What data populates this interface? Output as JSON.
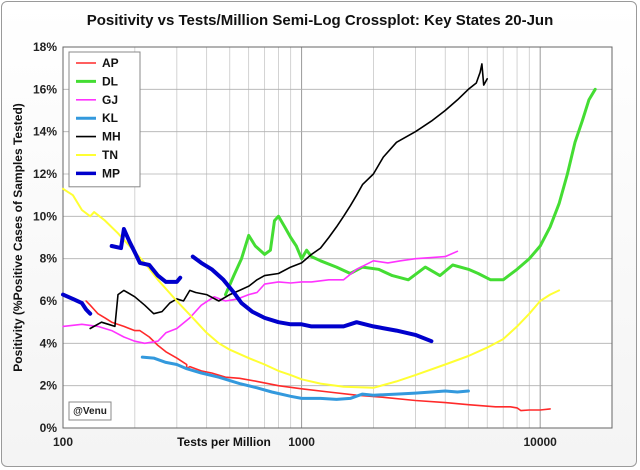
{
  "chart_data": {
    "type": "line",
    "title": "Positivity vs Tests/Million Semi-Log Crossplot: Key States  20-Jun",
    "xlabel": "Tests per Million",
    "ylabel": "Positivity (%Positive Cases of Samples Tested)",
    "x_scale": "log",
    "xlim": [
      100,
      20000
    ],
    "ylim": [
      0,
      18
    ],
    "x_ticks": [
      100,
      1000,
      10000
    ],
    "x_tick_labels": [
      "100",
      "1000",
      "10000"
    ],
    "y_ticks": [
      0,
      2,
      4,
      6,
      8,
      10,
      12,
      14,
      16,
      18
    ],
    "y_tick_labels": [
      "0%",
      "2%",
      "4%",
      "6%",
      "8%",
      "10%",
      "12%",
      "14%",
      "16%",
      "18%"
    ],
    "grid": true,
    "legend_position": "top-left",
    "watermark": "@Venu",
    "series": [
      {
        "name": "AP",
        "color": "#ff2a2a",
        "width": 1.6,
        "points": [
          [
            125,
            6.0
          ],
          [
            130,
            5.8
          ],
          [
            135,
            5.6
          ],
          [
            140,
            5.4
          ],
          [
            150,
            5.2
          ],
          [
            160,
            5.0
          ],
          [
            180,
            4.8
          ],
          [
            200,
            4.6
          ],
          [
            210,
            4.6
          ],
          [
            230,
            4.3
          ],
          [
            250,
            3.9
          ],
          [
            270,
            3.6
          ],
          [
            300,
            3.3
          ],
          [
            320,
            3.1
          ],
          [
            330,
            3.0
          ],
          [
            330,
            2.8
          ],
          [
            340,
            2.9
          ],
          [
            380,
            2.7
          ],
          [
            420,
            2.6
          ],
          [
            480,
            2.4
          ],
          [
            550,
            2.35
          ],
          [
            650,
            2.2
          ],
          [
            800,
            2.0
          ],
          [
            1000,
            1.85
          ],
          [
            1300,
            1.7
          ],
          [
            1700,
            1.55
          ],
          [
            2200,
            1.45
          ],
          [
            3000,
            1.3
          ],
          [
            4000,
            1.2
          ],
          [
            5000,
            1.1
          ],
          [
            6500,
            1.0
          ],
          [
            7500,
            1.0
          ],
          [
            8000,
            0.95
          ],
          [
            8300,
            0.82
          ],
          [
            9000,
            0.85
          ],
          [
            10000,
            0.85
          ],
          [
            11000,
            0.9
          ]
        ]
      },
      {
        "name": "DL",
        "color": "#44dd33",
        "width": 3,
        "points": [
          [
            480,
            6.3
          ],
          [
            520,
            7.2
          ],
          [
            560,
            8.0
          ],
          [
            600,
            9.1
          ],
          [
            640,
            8.6
          ],
          [
            700,
            8.2
          ],
          [
            740,
            8.4
          ],
          [
            770,
            9.8
          ],
          [
            800,
            10.0
          ],
          [
            850,
            9.5
          ],
          [
            900,
            9.0
          ],
          [
            950,
            8.6
          ],
          [
            1000,
            8.0
          ],
          [
            1050,
            8.4
          ],
          [
            1100,
            8.1
          ],
          [
            1200,
            7.9
          ],
          [
            1400,
            7.6
          ],
          [
            1600,
            7.3
          ],
          [
            1800,
            7.6
          ],
          [
            2100,
            7.5
          ],
          [
            2400,
            7.2
          ],
          [
            2800,
            7.0
          ],
          [
            3300,
            7.6
          ],
          [
            3800,
            7.2
          ],
          [
            4300,
            7.7
          ],
          [
            5000,
            7.5
          ],
          [
            5500,
            7.3
          ],
          [
            6200,
            7.0
          ],
          [
            7000,
            7.0
          ],
          [
            8000,
            7.5
          ],
          [
            9000,
            8.0
          ],
          [
            10000,
            8.6
          ],
          [
            11000,
            9.5
          ],
          [
            12000,
            10.6
          ],
          [
            13000,
            12.0
          ],
          [
            14000,
            13.5
          ],
          [
            15000,
            14.5
          ],
          [
            16000,
            15.5
          ],
          [
            17000,
            16.0
          ]
        ]
      },
      {
        "name": "GJ",
        "color": "#ff33ff",
        "width": 1.6,
        "points": [
          [
            100,
            4.8
          ],
          [
            120,
            4.9
          ],
          [
            140,
            4.8
          ],
          [
            160,
            4.6
          ],
          [
            180,
            4.3
          ],
          [
            200,
            4.1
          ],
          [
            220,
            4.0
          ],
          [
            250,
            4.1
          ],
          [
            270,
            4.5
          ],
          [
            300,
            4.7
          ],
          [
            340,
            5.2
          ],
          [
            380,
            5.8
          ],
          [
            430,
            6.2
          ],
          [
            480,
            6.0
          ],
          [
            540,
            6.1
          ],
          [
            600,
            6.3
          ],
          [
            650,
            6.4
          ],
          [
            700,
            6.8
          ],
          [
            800,
            6.9
          ],
          [
            900,
            6.85
          ],
          [
            1000,
            6.9
          ],
          [
            1100,
            6.9
          ],
          [
            1300,
            7.0
          ],
          [
            1500,
            7.0
          ],
          [
            1700,
            7.5
          ],
          [
            2000,
            7.9
          ],
          [
            2300,
            7.8
          ],
          [
            2600,
            7.9
          ],
          [
            3000,
            8.0
          ],
          [
            3500,
            8.05
          ],
          [
            4000,
            8.1
          ],
          [
            4500,
            8.35
          ]
        ]
      },
      {
        "name": "KL",
        "color": "#3399dd",
        "width": 3,
        "points": [
          [
            215,
            3.35
          ],
          [
            240,
            3.3
          ],
          [
            270,
            3.1
          ],
          [
            300,
            3.0
          ],
          [
            330,
            2.8
          ],
          [
            380,
            2.6
          ],
          [
            450,
            2.4
          ],
          [
            550,
            2.1
          ],
          [
            650,
            1.9
          ],
          [
            750,
            1.7
          ],
          [
            900,
            1.5
          ],
          [
            1000,
            1.4
          ],
          [
            1200,
            1.4
          ],
          [
            1400,
            1.35
          ],
          [
            1600,
            1.4
          ],
          [
            1800,
            1.6
          ],
          [
            2000,
            1.55
          ],
          [
            2500,
            1.6
          ],
          [
            3000,
            1.65
          ],
          [
            3500,
            1.7
          ],
          [
            4000,
            1.75
          ],
          [
            4500,
            1.7
          ],
          [
            5000,
            1.75
          ]
        ]
      },
      {
        "name": "MH",
        "color": "#000000",
        "width": 1.6,
        "points": [
          [
            130,
            4.7
          ],
          [
            145,
            5.0
          ],
          [
            155,
            4.9
          ],
          [
            165,
            4.8
          ],
          [
            170,
            6.3
          ],
          [
            180,
            6.5
          ],
          [
            200,
            6.2
          ],
          [
            220,
            5.8
          ],
          [
            240,
            5.4
          ],
          [
            260,
            5.5
          ],
          [
            280,
            5.9
          ],
          [
            300,
            6.1
          ],
          [
            320,
            6.0
          ],
          [
            340,
            6.5
          ],
          [
            360,
            6.4
          ],
          [
            400,
            6.3
          ],
          [
            450,
            6.0
          ],
          [
            500,
            6.3
          ],
          [
            550,
            6.5
          ],
          [
            600,
            6.7
          ],
          [
            650,
            7.0
          ],
          [
            700,
            7.2
          ],
          [
            800,
            7.3
          ],
          [
            900,
            7.6
          ],
          [
            1000,
            7.8
          ],
          [
            1100,
            8.2
          ],
          [
            1200,
            8.5
          ],
          [
            1300,
            9.0
          ],
          [
            1400,
            9.5
          ],
          [
            1500,
            10.0
          ],
          [
            1600,
            10.5
          ],
          [
            1700,
            11.0
          ],
          [
            1800,
            11.5
          ],
          [
            2000,
            12.0
          ],
          [
            2200,
            12.8
          ],
          [
            2500,
            13.5
          ],
          [
            3000,
            14.0
          ],
          [
            3500,
            14.5
          ],
          [
            4000,
            15.0
          ],
          [
            4500,
            15.5
          ],
          [
            5000,
            16.0
          ],
          [
            5400,
            16.3
          ],
          [
            5600,
            16.8
          ],
          [
            5700,
            17.2
          ],
          [
            5800,
            16.2
          ],
          [
            6000,
            16.5
          ]
        ]
      },
      {
        "name": "TN",
        "color": "#ffff33",
        "width": 2,
        "points": [
          [
            100,
            11.3
          ],
          [
            110,
            11.0
          ],
          [
            120,
            10.3
          ],
          [
            130,
            10.0
          ],
          [
            135,
            10.2
          ],
          [
            150,
            9.8
          ],
          [
            170,
            9.2
          ],
          [
            190,
            8.6
          ],
          [
            220,
            7.8
          ],
          [
            250,
            7.0
          ],
          [
            300,
            6.0
          ],
          [
            350,
            5.2
          ],
          [
            400,
            4.5
          ],
          [
            450,
            4.0
          ],
          [
            500,
            3.7
          ],
          [
            600,
            3.3
          ],
          [
            700,
            3.0
          ],
          [
            800,
            2.7
          ],
          [
            900,
            2.5
          ],
          [
            1000,
            2.3
          ],
          [
            1200,
            2.1
          ],
          [
            1500,
            1.95
          ],
          [
            2000,
            1.9
          ],
          [
            2500,
            2.2
          ],
          [
            3000,
            2.5
          ],
          [
            4000,
            3.0
          ],
          [
            5000,
            3.4
          ],
          [
            6000,
            3.8
          ],
          [
            7000,
            4.2
          ],
          [
            8000,
            4.8
          ],
          [
            9000,
            5.4
          ],
          [
            10000,
            6.0
          ],
          [
            11000,
            6.3
          ],
          [
            12000,
            6.5
          ]
        ]
      },
      {
        "name": "MP",
        "color": "#0000cc",
        "width": 4,
        "points_segments": [
          [
            [
              100,
              6.3
            ],
            [
              110,
              6.1
            ],
            [
              120,
              5.9
            ],
            [
              125,
              5.6
            ],
            [
              130,
              5.4
            ]
          ],
          [
            [
              160,
              8.6
            ],
            [
              175,
              8.5
            ],
            [
              180,
              9.4
            ],
            [
              190,
              8.8
            ],
            [
              200,
              8.3
            ],
            [
              210,
              7.8
            ],
            [
              230,
              7.7
            ],
            [
              250,
              7.2
            ],
            [
              270,
              6.9
            ],
            [
              300,
              6.9
            ],
            [
              310,
              7.1
            ]
          ],
          [
            [
              350,
              8.1
            ],
            [
              380,
              7.8
            ],
            [
              420,
              7.5
            ],
            [
              470,
              7.0
            ],
            [
              520,
              6.4
            ],
            [
              560,
              5.9
            ],
            [
              620,
              5.5
            ],
            [
              700,
              5.2
            ],
            [
              800,
              5.0
            ],
            [
              900,
              4.9
            ],
            [
              1000,
              4.9
            ],
            [
              1100,
              4.8
            ],
            [
              1300,
              4.8
            ],
            [
              1500,
              4.8
            ],
            [
              1700,
              5.0
            ],
            [
              2000,
              4.8
            ],
            [
              2500,
              4.6
            ],
            [
              3000,
              4.4
            ],
            [
              3500,
              4.1
            ]
          ]
        ]
      }
    ]
  }
}
